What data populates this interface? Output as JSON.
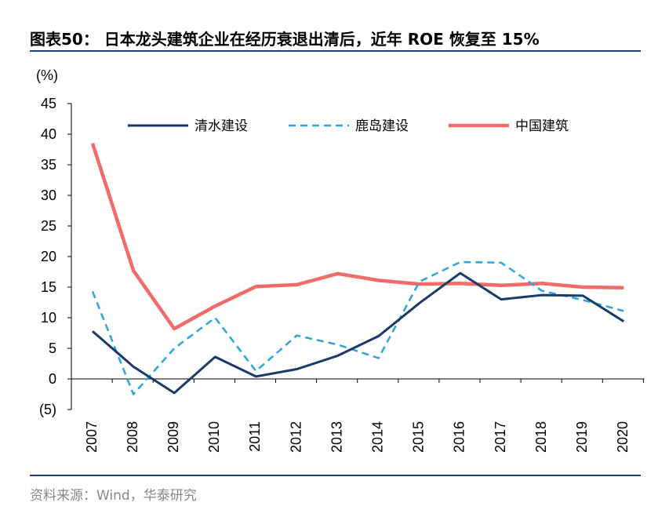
{
  "title": "图表50：  日本龙头建筑企业在经历衰退出清后，近年 ROE 恢复至 15%",
  "source": "资料来源：Wind，华泰研究",
  "colors": {
    "accent_rule": "#1f3f6e",
    "series_shimizu": "#1a3a6b",
    "series_kajima": "#2aa6dc",
    "series_cscec": "#f26b6b"
  },
  "chart_data": {
    "type": "line",
    "ylabel": "(%)",
    "ylim": [
      -5,
      45
    ],
    "yticks": [
      45,
      40,
      35,
      30,
      25,
      20,
      15,
      10,
      5,
      0,
      -5
    ],
    "ytick_labels": [
      "45",
      "40",
      "35",
      "30",
      "25",
      "20",
      "15",
      "10",
      "5",
      "0",
      "(5)"
    ],
    "x": [
      "2007",
      "2008",
      "2009",
      "2010",
      "2011",
      "2012",
      "2013",
      "2014",
      "2015",
      "2016",
      "2017",
      "2018",
      "2019",
      "2020"
    ],
    "legend_position": "top-center",
    "grid": false,
    "series": [
      {
        "name": "清水建设",
        "style": "solid",
        "values": [
          7.8,
          2.0,
          -2.3,
          3.6,
          0.4,
          1.6,
          3.8,
          7.0,
          12.4,
          17.3,
          13.0,
          13.7,
          13.6,
          9.4
        ]
      },
      {
        "name": "鹿岛建设",
        "style": "dashed",
        "values": [
          14.3,
          -2.5,
          5.0,
          10.0,
          1.3,
          7.1,
          5.6,
          3.4,
          15.9,
          19.1,
          19.0,
          14.4,
          12.9,
          11.1
        ]
      },
      {
        "name": "中国建筑",
        "style": "solid-thick",
        "values": [
          38.5,
          17.7,
          8.2,
          11.9,
          15.1,
          15.4,
          17.2,
          16.1,
          15.5,
          15.6,
          15.3,
          15.6,
          15.0,
          14.9
        ]
      }
    ]
  }
}
